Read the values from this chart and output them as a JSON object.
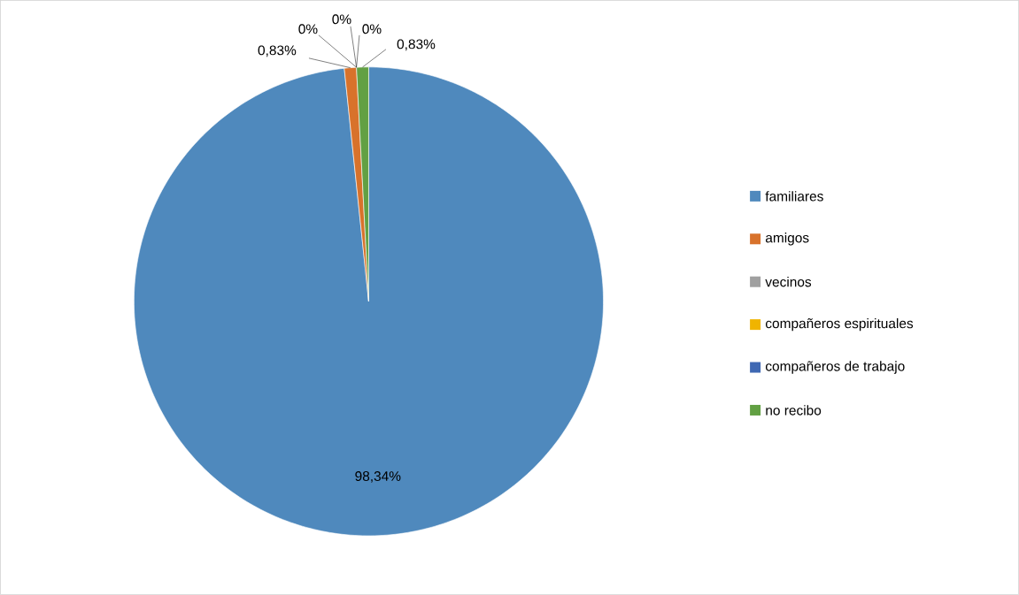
{
  "chart_data": {
    "type": "pie",
    "categories": [
      "familiares",
      "amigos",
      "vecinos",
      "compañeros espirituales",
      "compañeros de trabajo",
      "no recibo"
    ],
    "values": [
      98.34,
      0.83,
      0,
      0,
      0,
      0.83
    ],
    "colors": [
      "#4f89bd",
      "#d8722b",
      "#a0a0a0",
      "#f0b400",
      "#3f68b3",
      "#62a043"
    ],
    "value_labels": [
      "98,34%",
      "0,83%",
      "0%",
      "0%",
      "0%",
      "0,83%"
    ],
    "legend": "right"
  }
}
